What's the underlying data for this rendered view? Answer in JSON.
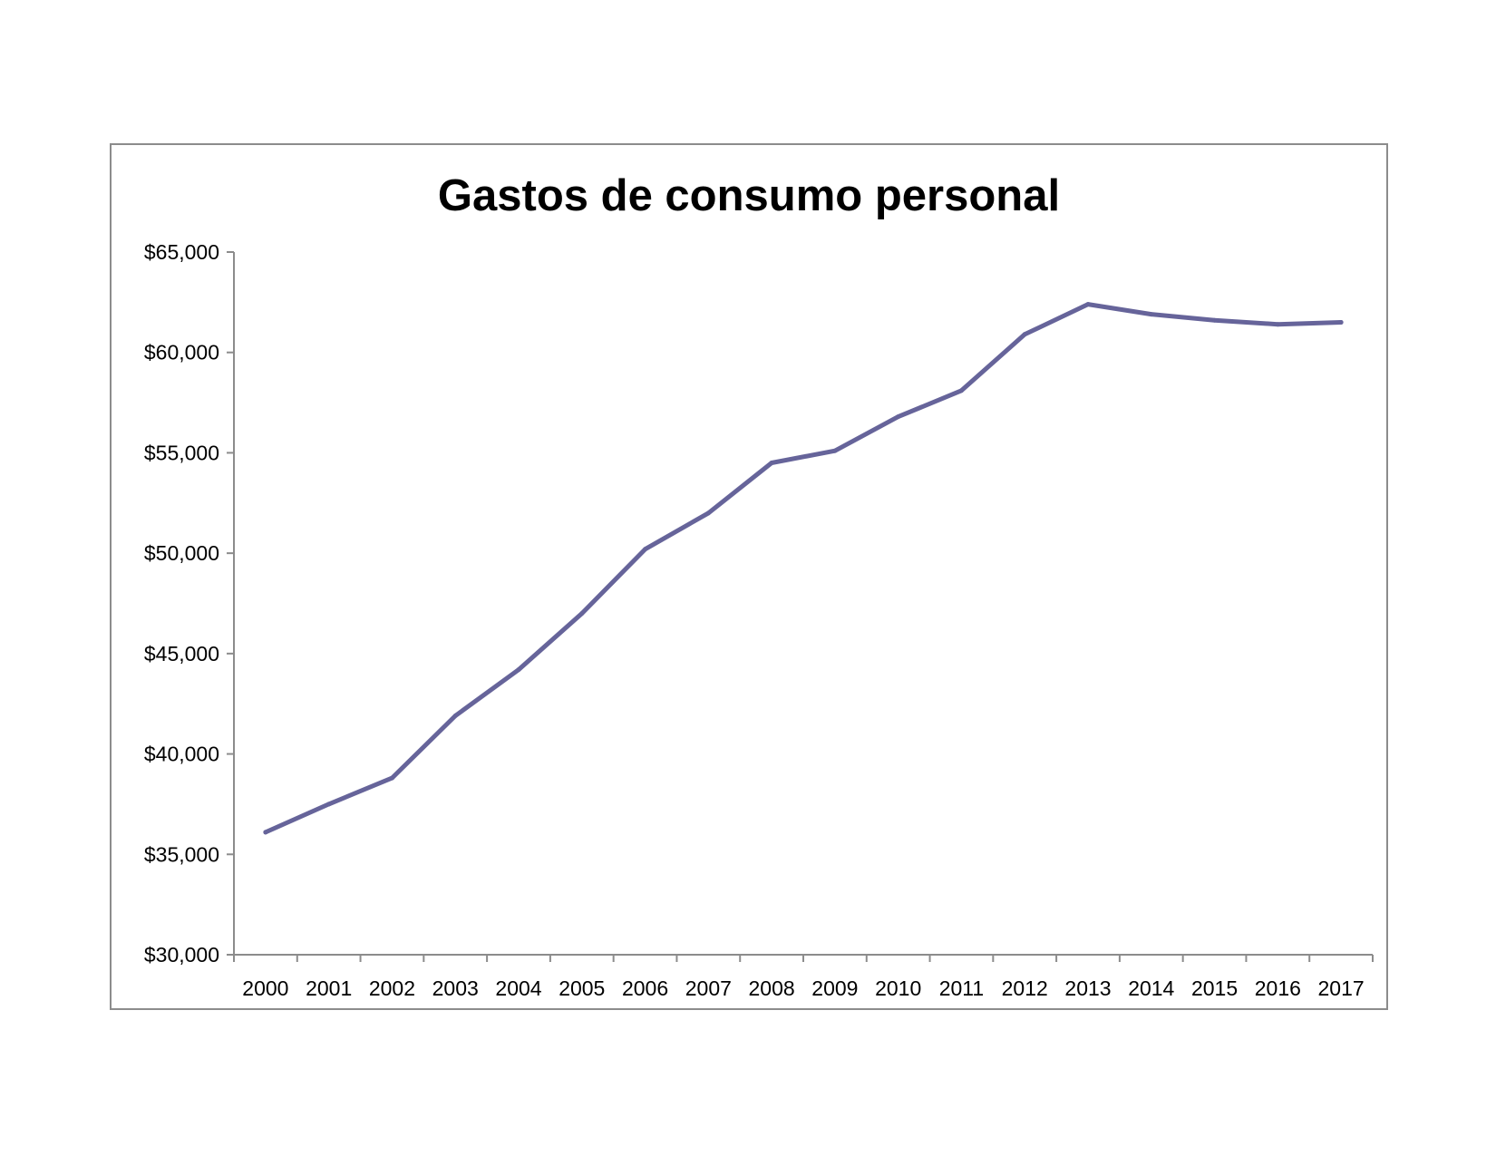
{
  "chart_data": {
    "type": "line",
    "title": "Gastos de consumo personal",
    "xlabel": "",
    "ylabel": "",
    "categories": [
      "2000",
      "2001",
      "2002",
      "2003",
      "2004",
      "2005",
      "2006",
      "2007",
      "2008",
      "2009",
      "2010",
      "2011",
      "2012",
      "2013",
      "2014",
      "2015",
      "2016",
      "2017"
    ],
    "series": [
      {
        "values": [
          36100,
          37500,
          38800,
          41900,
          44200,
          47000,
          50200,
          52000,
          54500,
          55100,
          56800,
          58100,
          60900,
          62400,
          61900,
          61600,
          61400,
          61500
        ],
        "color": "#66649a"
      }
    ],
    "ylim": [
      30000,
      65000
    ],
    "yticks": [
      30000,
      35000,
      40000,
      45000,
      50000,
      55000,
      60000,
      65000
    ],
    "ytick_labels": [
      "$30,000",
      "$35,000",
      "$40,000",
      "$45,000",
      "$50,000",
      "$55,000",
      "$60,000",
      "$65,000"
    ],
    "grid": false,
    "legend": "none",
    "axis_color": "#8c8c8c",
    "frame_color": "#8c8c8c"
  }
}
